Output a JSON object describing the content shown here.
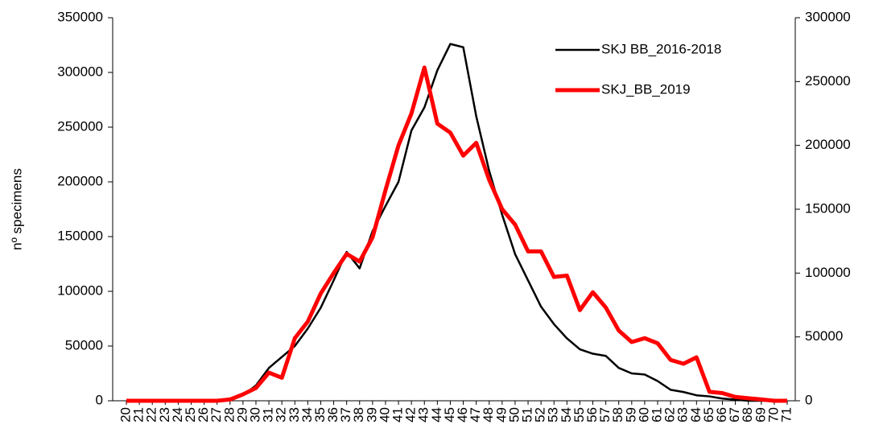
{
  "chart_data": {
    "type": "line",
    "y_label": "nº  specimens",
    "categories": [
      "20",
      "21",
      "22",
      "23",
      "24",
      "25",
      "26",
      "27",
      "28",
      "29",
      "30",
      "31",
      "32",
      "33",
      "34",
      "35",
      "36",
      "37",
      "38",
      "39",
      "40",
      "41",
      "42",
      "43",
      "44",
      "45",
      "46",
      "47",
      "48",
      "49",
      "50",
      "51",
      "52",
      "53",
      "54",
      "55",
      "56",
      "57",
      "58",
      "59",
      "60",
      "61",
      "62",
      "63",
      "64",
      "65",
      "66",
      "67",
      "68",
      "69",
      "70",
      "71"
    ],
    "series": [
      {
        "name": "SKJ BB_2016-2018",
        "color": "#000000",
        "axis": "y",
        "values": [
          0,
          0,
          0,
          0,
          0,
          0,
          0,
          0,
          500,
          5000,
          14000,
          30000,
          40000,
          50000,
          66000,
          85000,
          110000,
          136000,
          121000,
          155000,
          178000,
          200000,
          247000,
          268000,
          302000,
          326000,
          323000,
          260000,
          210000,
          170000,
          134000,
          110000,
          86000,
          70000,
          57000,
          47000,
          43000,
          41000,
          30000,
          25000,
          24000,
          18000,
          10000,
          8000,
          5000,
          4000,
          2000,
          1000,
          0,
          0,
          0,
          0
        ]
      },
      {
        "name": "SKJ_BB_2019",
        "color": "#ff0000",
        "axis": "y2",
        "values": [
          0,
          0,
          0,
          0,
          0,
          0,
          0,
          0,
          1000,
          5000,
          10000,
          22000,
          18000,
          49000,
          62000,
          84000,
          100000,
          115000,
          109000,
          128000,
          165000,
          200000,
          225000,
          261000,
          217000,
          210000,
          192000,
          202000,
          173000,
          150000,
          138000,
          117000,
          117000,
          97000,
          98000,
          71000,
          85000,
          73000,
          55000,
          46000,
          49000,
          45000,
          32000,
          29000,
          34000,
          7000,
          6000,
          3000,
          2000,
          1000,
          0,
          0
        ]
      }
    ],
    "ylim": [
      0,
      350000
    ],
    "yticks": [
      0,
      50000,
      100000,
      150000,
      200000,
      250000,
      300000,
      350000
    ],
    "y2lim": [
      0,
      300000
    ],
    "y2ticks": [
      0,
      50000,
      100000,
      150000,
      200000,
      250000,
      300000
    ],
    "legend": "top-right",
    "grid": false
  }
}
